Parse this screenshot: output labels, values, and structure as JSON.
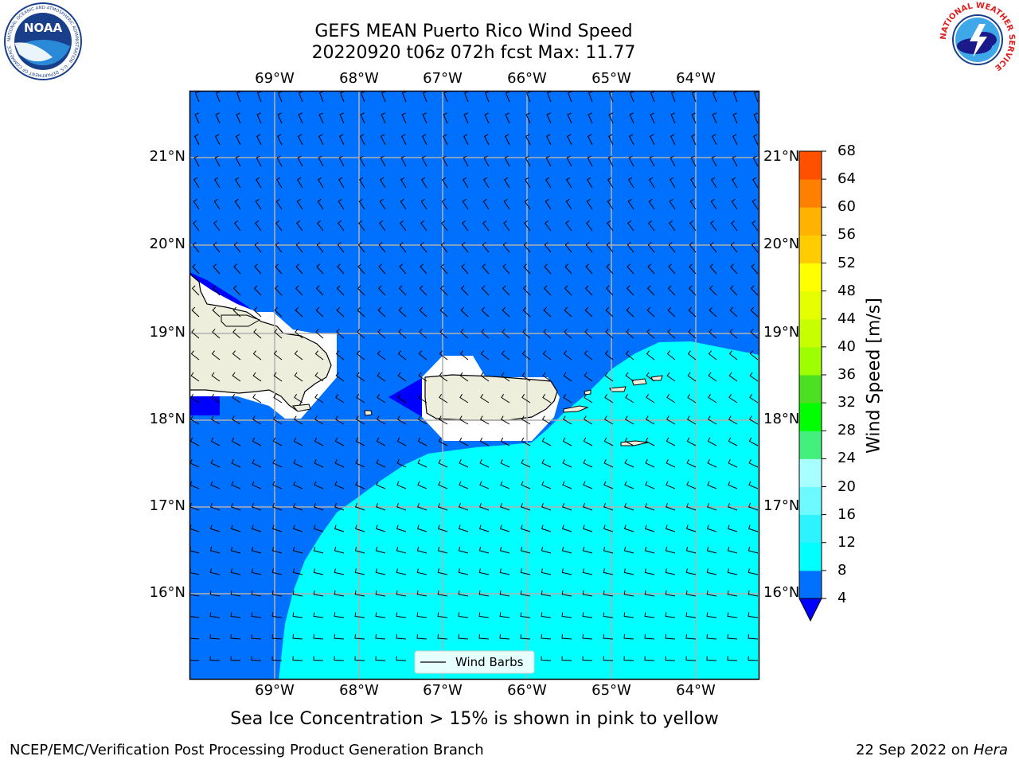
{
  "title_line1": "GEFS MEAN Puerto Rico Wind Speed",
  "title_line2": "20220920 t06z 072h fcst   Max: 11.77",
  "subtitle": "Sea Ice Concentration > 15% is shown in pink to yellow",
  "footer_left": "NCEP/EMC/Verification Post Processing Product Generation Branch",
  "footer_date": "22 Sep 2022 on",
  "footer_host": "Hera",
  "legend_label": "Wind Barbs",
  "colorbar_label": "Wind Speed [m/s]",
  "map": {
    "lon_labels": [
      "69°W",
      "68°W",
      "67°W",
      "66°W",
      "65°W",
      "64°W"
    ],
    "lat_labels": [
      "21°N",
      "20°N",
      "19°N",
      "18°N",
      "17°N",
      "16°N"
    ]
  },
  "colorbar": {
    "ticks": [
      "4",
      "8",
      "12",
      "16",
      "20",
      "24",
      "28",
      "32",
      "36",
      "40",
      "44",
      "48",
      "52",
      "56",
      "60",
      "64",
      "68"
    ],
    "colors": [
      "#0070ff",
      "#00ffff",
      "#2df3ff",
      "#6cf9ff",
      "#a8ffff",
      "#44f07c",
      "#00ff00",
      "#4ddf22",
      "#9dff00",
      "#c8ff00",
      "#e6ff00",
      "#ffff00",
      "#ffcc00",
      "#ffb200",
      "#ff8000",
      "#ff5000",
      "#ff2000",
      "#ff0000"
    ],
    "under_color": "#0000ff"
  },
  "field_colors": {
    "water_dark": "#0000ff",
    "water_4_8": "#0070ff",
    "water_8_12": "#00ffff",
    "land": "#eeeedd"
  },
  "logos": {
    "noaa": "NOAA",
    "noaa_ring": "NATIONAL OCEANIC AND ATMOSPHERIC ADMINISTRATION · U.S. DEPARTMENT OF COMMERCE",
    "nws_ring": "NATIONAL WEATHER SERVICE"
  }
}
